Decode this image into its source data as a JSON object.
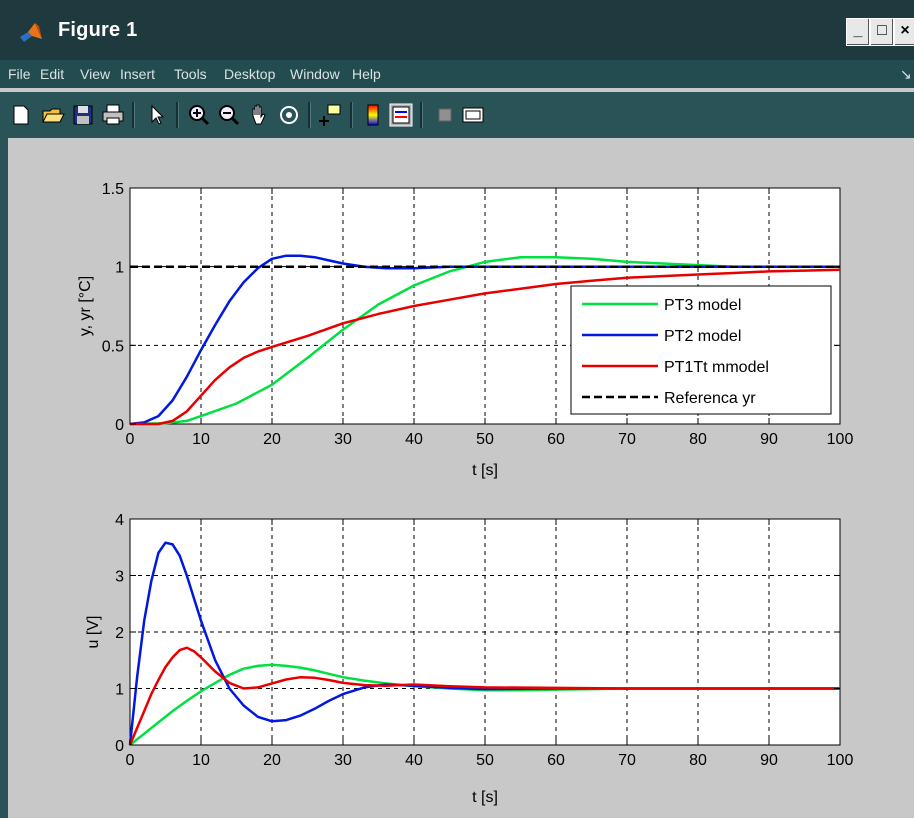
{
  "window": {
    "title": "Figure 1",
    "buttons": [
      "minimize",
      "maximize",
      "close"
    ]
  },
  "menu": [
    "File",
    "Edit",
    "View",
    "Insert",
    "Tools",
    "Desktop",
    "Window",
    "Help"
  ],
  "toolbar": {
    "icons": [
      "new-figure-icon",
      "open-file-icon",
      "save-icon",
      "print-icon",
      "select-arrow-icon",
      "zoom-in-icon",
      "zoom-out-icon",
      "pan-hand-icon",
      "rotate-3d-icon",
      "data-cursor-icon",
      "colorbar-icon",
      "legend-icon",
      "hide-plot-tools-icon",
      "show-plot-tools-icon"
    ]
  },
  "colors": {
    "pt3": "#00e040",
    "pt2": "#0018e0",
    "pt1tt": "#e80000",
    "ref": "#000000",
    "plot_bg": "#ffffff",
    "figure_bg": "#c8c8c8"
  },
  "chart_data": [
    {
      "type": "line",
      "xlabel": "t [s]",
      "ylabel": "y, yr [°C]",
      "xlim": [
        0,
        100
      ],
      "ylim": [
        0,
        1.5
      ],
      "xticks": [
        "0",
        "10",
        "20",
        "30",
        "40",
        "50",
        "60",
        "70",
        "80",
        "90",
        "100"
      ],
      "yticks": [
        "0",
        "0.5",
        "1",
        "1.5"
      ],
      "grid": true,
      "legend_position": "bottom-right",
      "series": [
        {
          "name": "PT3 model",
          "color": "#00e040",
          "x": [
            0,
            5,
            8,
            10,
            15,
            20,
            25,
            30,
            35,
            40,
            45,
            50,
            55,
            60,
            65,
            70,
            75,
            80,
            85,
            90,
            100
          ],
          "y": [
            0,
            0.005,
            0.02,
            0.05,
            0.13,
            0.25,
            0.42,
            0.6,
            0.76,
            0.88,
            0.97,
            1.03,
            1.06,
            1.06,
            1.05,
            1.03,
            1.02,
            1.01,
            1.0,
            1.0,
            1.0
          ]
        },
        {
          "name": "PT2 model",
          "color": "#0018e0",
          "x": [
            0,
            2,
            4,
            6,
            8,
            10,
            12,
            14,
            16,
            18,
            20,
            22,
            24,
            26,
            28,
            30,
            33,
            36,
            40,
            45,
            50,
            60,
            70,
            80,
            90,
            100
          ],
          "y": [
            0,
            0.01,
            0.05,
            0.15,
            0.3,
            0.47,
            0.63,
            0.78,
            0.9,
            0.99,
            1.05,
            1.07,
            1.07,
            1.06,
            1.04,
            1.02,
            1.0,
            0.99,
            0.99,
            1.0,
            1.0,
            1.0,
            1.0,
            1.0,
            1.0,
            1.0
          ]
        },
        {
          "name": "PT1Tt mmodel",
          "color": "#e80000",
          "x": [
            0,
            4,
            6,
            8,
            10,
            12,
            14,
            16,
            18,
            20,
            25,
            30,
            35,
            40,
            45,
            50,
            55,
            60,
            65,
            70,
            75,
            80,
            85,
            90,
            95,
            100
          ],
          "y": [
            0,
            0.0,
            0.02,
            0.08,
            0.18,
            0.28,
            0.36,
            0.42,
            0.46,
            0.49,
            0.56,
            0.64,
            0.7,
            0.75,
            0.79,
            0.83,
            0.86,
            0.89,
            0.91,
            0.93,
            0.94,
            0.95,
            0.96,
            0.97,
            0.975,
            0.98
          ]
        },
        {
          "name": "Referenca yr",
          "color": "#000000",
          "dash": true,
          "x": [
            0,
            100
          ],
          "y": [
            1,
            1
          ]
        }
      ]
    },
    {
      "type": "line",
      "xlabel": "t [s]",
      "ylabel": "u [V]",
      "xlim": [
        0,
        100
      ],
      "ylim": [
        0,
        4
      ],
      "xticks": [
        "0",
        "10",
        "20",
        "30",
        "40",
        "50",
        "60",
        "70",
        "80",
        "90",
        "100"
      ],
      "yticks": [
        "0",
        "1",
        "2",
        "3",
        "4"
      ],
      "grid": true,
      "series": [
        {
          "name": "",
          "color": "#00e040",
          "x": [
            0,
            2,
            4,
            6,
            8,
            10,
            12,
            14,
            16,
            18,
            20,
            22,
            24,
            26,
            28,
            30,
            33,
            36,
            40,
            45,
            50,
            55,
            60,
            65,
            70,
            80,
            90,
            100
          ],
          "y": [
            0,
            0.2,
            0.4,
            0.6,
            0.78,
            0.95,
            1.1,
            1.24,
            1.35,
            1.4,
            1.42,
            1.4,
            1.37,
            1.32,
            1.26,
            1.2,
            1.14,
            1.09,
            1.04,
            1.0,
            0.97,
            0.97,
            0.98,
            0.99,
            1.0,
            1.0,
            1.0,
            1.0
          ]
        },
        {
          "name": "",
          "color": "#0018e0",
          "x": [
            0,
            1,
            2,
            3,
            4,
            5,
            6,
            7,
            8,
            9,
            10,
            12,
            14,
            16,
            18,
            20,
            22,
            24,
            26,
            28,
            30,
            33,
            36,
            40,
            45,
            50,
            60,
            70,
            80,
            90,
            100
          ],
          "y": [
            0,
            1.2,
            2.2,
            2.9,
            3.4,
            3.58,
            3.55,
            3.35,
            3.0,
            2.6,
            2.2,
            1.5,
            1.0,
            0.7,
            0.5,
            0.42,
            0.44,
            0.52,
            0.64,
            0.78,
            0.9,
            1.02,
            1.07,
            1.05,
            1.01,
            0.99,
            1.0,
            1.0,
            1.0,
            1.0,
            1.0
          ]
        },
        {
          "name": "",
          "color": "#e80000",
          "x": [
            0,
            1,
            2,
            3,
            4,
            5,
            6,
            7,
            8,
            9,
            10,
            12,
            14,
            16,
            18,
            20,
            22,
            24,
            26,
            28,
            30,
            33,
            36,
            40,
            45,
            50,
            60,
            70,
            80,
            90,
            100
          ],
          "y": [
            0,
            0.3,
            0.6,
            0.9,
            1.15,
            1.38,
            1.55,
            1.68,
            1.72,
            1.66,
            1.55,
            1.3,
            1.1,
            1.0,
            1.02,
            1.09,
            1.16,
            1.2,
            1.19,
            1.15,
            1.1,
            1.06,
            1.05,
            1.07,
            1.04,
            1.02,
            1.01,
            1.0,
            1.0,
            1.0,
            1.0
          ]
        }
      ]
    }
  ]
}
